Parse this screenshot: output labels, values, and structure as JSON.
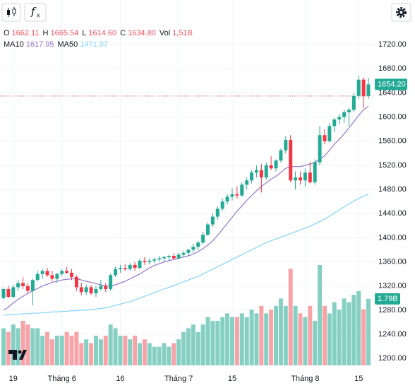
{
  "chart_data": {
    "type": "candlestick",
    "up_color": "#22ab94",
    "down_color": "#f23645",
    "categories": [
      null,
      null,
      "19",
      null,
      null,
      null,
      null,
      null,
      null,
      null,
      null,
      null,
      "Tháng 6",
      null,
      null,
      null,
      null,
      null,
      null,
      null,
      null,
      null,
      null,
      null,
      "16",
      null,
      null,
      null,
      null,
      null,
      null,
      null,
      null,
      null,
      null,
      null,
      "Tháng 7",
      null,
      null,
      null,
      null,
      null,
      null,
      null,
      null,
      null,
      null,
      "15",
      null,
      null,
      null,
      null,
      null,
      null,
      null,
      null,
      null,
      null,
      null,
      null,
      null,
      null,
      "Tháng 8",
      null,
      null,
      null,
      null,
      null,
      null,
      null,
      null,
      null,
      null,
      "15",
      null,
      null
    ],
    "open": [
      1300,
      1315,
      1302,
      1318,
      1325,
      1320,
      1312,
      1330,
      1340,
      1345,
      1338,
      1332,
      1340,
      1345,
      1342,
      1335,
      1318,
      1310,
      1318,
      1308,
      1315,
      1320,
      1315,
      1338,
      1348,
      1350,
      1348,
      1355,
      1350,
      1362,
      1360,
      1362,
      1364,
      1366,
      1368,
      1370,
      1366,
      1372,
      1375,
      1380,
      1385,
      1392,
      1405,
      1422,
      1435,
      1448,
      1460,
      1468,
      1472,
      1470,
      1488,
      1495,
      1508,
      1512,
      1500,
      1520,
      1515,
      1528,
      1545,
      1562,
      1495,
      1500,
      1495,
      1508,
      1492,
      1525,
      1570,
      1560,
      1585,
      1596,
      1600,
      1608,
      1612,
      1635,
      1662.11,
      1634.8
    ],
    "high": [
      1318,
      1320,
      1322,
      1330,
      1335,
      1325,
      1332,
      1345,
      1348,
      1350,
      1345,
      1342,
      1348,
      1352,
      1348,
      1338,
      1325,
      1322,
      1322,
      1320,
      1330,
      1325,
      1340,
      1352,
      1355,
      1356,
      1358,
      1360,
      1365,
      1368,
      1366,
      1367,
      1370,
      1370,
      1372,
      1374,
      1375,
      1378,
      1382,
      1390,
      1395,
      1410,
      1425,
      1440,
      1452,
      1465,
      1472,
      1482,
      1485,
      1492,
      1500,
      1512,
      1520,
      1522,
      1525,
      1535,
      1530,
      1548,
      1568,
      1570,
      1510,
      1510,
      1515,
      1525,
      1530,
      1585,
      1580,
      1590,
      1598,
      1605,
      1612,
      1615,
      1640,
      1668,
      1665.54,
      1665
    ],
    "low": [
      1298,
      1300,
      1300,
      1312,
      1315,
      1308,
      1288,
      1328,
      1332,
      1335,
      1328,
      1325,
      1336,
      1340,
      1330,
      1312,
      1305,
      1305,
      1305,
      1302,
      1312,
      1310,
      1312,
      1335,
      1342,
      1345,
      1345,
      1345,
      1348,
      1355,
      1356,
      1358,
      1360,
      1360,
      1362,
      1364,
      1364,
      1368,
      1370,
      1375,
      1380,
      1390,
      1403,
      1418,
      1430,
      1445,
      1455,
      1462,
      1465,
      1468,
      1480,
      1490,
      1500,
      1475,
      1496,
      1512,
      1510,
      1525,
      1540,
      1492,
      1480,
      1488,
      1485,
      1490,
      1488,
      1520,
      1555,
      1558,
      1575,
      1588,
      1590,
      1585,
      1608,
      1630,
      1614.6,
      1630
    ],
    "close": [
      1315,
      1302,
      1318,
      1325,
      1320,
      1312,
      1330,
      1340,
      1345,
      1338,
      1332,
      1340,
      1345,
      1342,
      1335,
      1318,
      1310,
      1318,
      1308,
      1315,
      1320,
      1315,
      1338,
      1348,
      1350,
      1348,
      1355,
      1350,
      1362,
      1360,
      1362,
      1364,
      1366,
      1368,
      1370,
      1366,
      1372,
      1375,
      1380,
      1385,
      1392,
      1405,
      1422,
      1435,
      1448,
      1460,
      1468,
      1472,
      1470,
      1488,
      1495,
      1508,
      1512,
      1500,
      1520,
      1515,
      1528,
      1545,
      1562,
      1495,
      1500,
      1495,
      1508,
      1492,
      1525,
      1570,
      1560,
      1585,
      1596,
      1600,
      1608,
      1612,
      1635,
      1662,
      1634.8,
      1654.2
    ],
    "last_label": "1654.20",
    "price_line": 1634.8,
    "volume": {
      "up_color": "#86cfc3",
      "down_color": "#f7a3a8",
      "last_label": "1.79B",
      "values": [
        1.0,
        0.9,
        1.1,
        1.0,
        1.2,
        1.1,
        1.0,
        1.0,
        0.8,
        0.9,
        0.7,
        0.8,
        0.8,
        0.9,
        0.8,
        0.9,
        0.6,
        0.7,
        0.6,
        0.8,
        0.7,
        0.8,
        1.1,
        1.0,
        0.8,
        0.8,
        0.7,
        0.8,
        0.6,
        0.7,
        0.6,
        0.5,
        0.5,
        0.6,
        0.5,
        0.6,
        0.7,
        0.9,
        1.0,
        1.1,
        0.9,
        1.1,
        1.3,
        1.2,
        1.2,
        1.3,
        1.4,
        1.3,
        1.3,
        1.4,
        1.3,
        1.5,
        1.4,
        1.6,
        1.4,
        1.5,
        1.6,
        1.8,
        1.6,
        2.6,
        1.6,
        1.4,
        1.3,
        1.6,
        1.2,
        2.7,
        1.6,
        1.4,
        1.7,
        1.5,
        1.8,
        1.7,
        1.9,
        2.0,
        1.51,
        1.79
      ]
    },
    "ma": [
      {
        "name": "MA10",
        "color": "#9575cd",
        "legend_value": 1617.95,
        "values": [
          1280,
          1285,
          1292,
          1298,
          1303,
          1308,
          1312,
          1316,
          1320,
          1323,
          1326,
          1328,
          1330,
          1331,
          1332,
          1332,
          1330,
          1328,
          1326,
          1324,
          1322,
          1320,
          1320,
          1322,
          1325,
          1328,
          1332,
          1336,
          1340,
          1345,
          1350,
          1354,
          1357,
          1360,
          1362,
          1364,
          1366,
          1368,
          1370,
          1373,
          1377,
          1382,
          1388,
          1395,
          1404,
          1414,
          1424,
          1434,
          1444,
          1453,
          1462,
          1470,
          1478,
          1485,
          1491,
          1497,
          1502,
          1508,
          1515,
          1518,
          1518,
          1518,
          1520,
          1522,
          1525,
          1530,
          1536,
          1545,
          1555,
          1563,
          1572,
          1582,
          1592,
          1603,
          1612,
          1617.95
        ]
      },
      {
        "name": "MA50",
        "color": "#81d4fa",
        "legend_value": 1471.97,
        "values": [
          1272,
          1272,
          1273,
          1273,
          1274,
          1274,
          1275,
          1275,
          1276,
          1276,
          1277,
          1277,
          1278,
          1278,
          1279,
          1279,
          1280,
          1280,
          1281,
          1282,
          1283,
          1284,
          1286,
          1288,
          1290,
          1292,
          1294,
          1297,
          1300,
          1303,
          1306,
          1309,
          1312,
          1315,
          1318,
          1321,
          1324,
          1327,
          1330,
          1333,
          1336,
          1340,
          1344,
          1348,
          1352,
          1356,
          1360,
          1364,
          1368,
          1372,
          1376,
          1380,
          1384,
          1388,
          1392,
          1395,
          1398,
          1401,
          1404,
          1407,
          1410,
          1413,
          1416,
          1419,
          1423,
          1427,
          1431,
          1436,
          1441,
          1446,
          1451,
          1456,
          1461,
          1465,
          1469,
          1471.97
        ]
      }
    ],
    "ohlc_legend": [
      {
        "name": "O",
        "value": 1662.11
      },
      {
        "name": "H",
        "value": 1665.54
      },
      {
        "name": "L",
        "value": 1614.6,
        "label": "1614.60"
      },
      {
        "name": "C",
        "value": 1634.8,
        "label": "1634.80"
      },
      {
        "name": "Vol",
        "value": 1.51,
        "label": "1,51B"
      }
    ],
    "legend_value_color": "#f7525f",
    "ylim": [
      1185,
      1794
    ],
    "yticks": [
      {
        "value": 1200,
        "label": "1200.00"
      },
      {
        "value": 1240,
        "label": "1240.00"
      },
      {
        "value": 1280,
        "label": "1280.00"
      },
      {
        "value": 1320,
        "label": "1320.00"
      },
      {
        "value": 1360,
        "label": "1360.00"
      },
      {
        "value": 1400,
        "label": "1400.00"
      },
      {
        "value": 1440,
        "label": "1440.00"
      },
      {
        "value": 1480,
        "label": "1480.00"
      },
      {
        "value": 1520,
        "label": "1520.00"
      },
      {
        "value": 1560,
        "label": "1560.00"
      },
      {
        "value": 1600,
        "label": "1600.00"
      },
      {
        "value": 1640,
        "label": "1640.00"
      },
      {
        "value": 1680,
        "label": "1680.00"
      },
      {
        "value": 1720,
        "label": "1720.00"
      }
    ],
    "grid": true
  }
}
